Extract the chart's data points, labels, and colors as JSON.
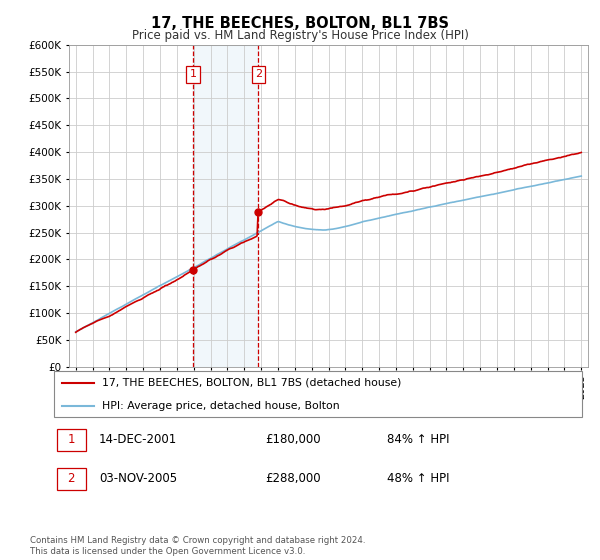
{
  "title": "17, THE BEECHES, BOLTON, BL1 7BS",
  "subtitle": "Price paid vs. HM Land Registry's House Price Index (HPI)",
  "legend_line1": "17, THE BEECHES, BOLTON, BL1 7BS (detached house)",
  "legend_line2": "HPI: Average price, detached house, Bolton",
  "sale1_label": "1",
  "sale1_date": "14-DEC-2001",
  "sale1_price": "£180,000",
  "sale1_hpi": "84% ↑ HPI",
  "sale2_label": "2",
  "sale2_date": "03-NOV-2005",
  "sale2_price": "£288,000",
  "sale2_hpi": "48% ↑ HPI",
  "footer": "Contains HM Land Registry data © Crown copyright and database right 2024.\nThis data is licensed under the Open Government Licence v3.0.",
  "sale1_year": 2001.96,
  "sale2_year": 2005.84,
  "hpi_color": "#7ab8d9",
  "price_color": "#cc0000",
  "background_color": "#ffffff",
  "grid_color": "#cccccc",
  "shade_color": "#d8eaf6",
  "ylim": [
    0,
    600000
  ],
  "yticks": [
    0,
    50000,
    100000,
    150000,
    200000,
    250000,
    300000,
    350000,
    400000,
    450000,
    500000,
    550000,
    600000
  ]
}
